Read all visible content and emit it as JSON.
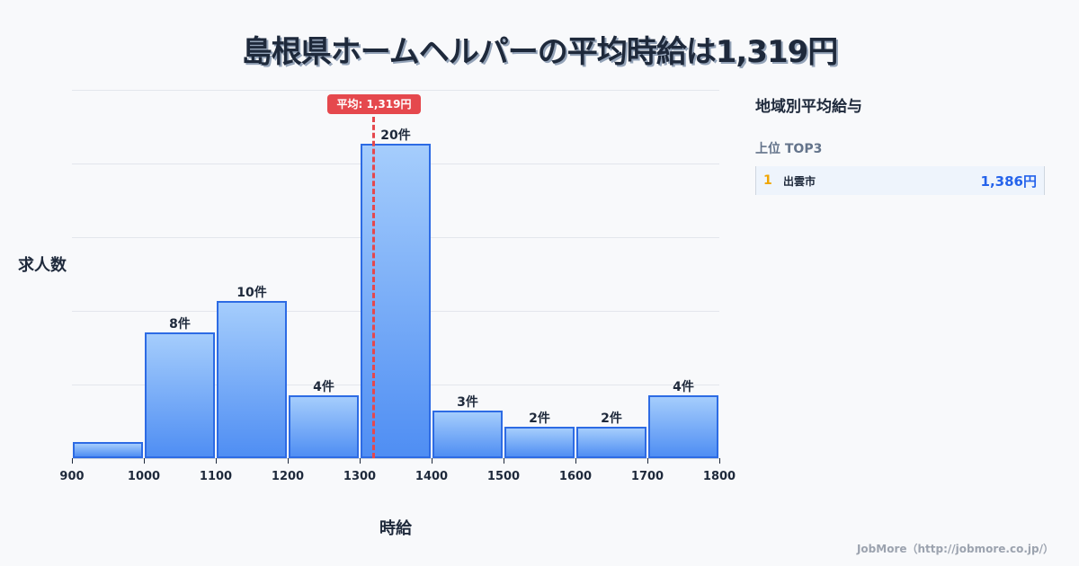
{
  "title": "島根県ホームヘルパーの平均時給は1,319円",
  "average": {
    "label": "平均: 1,319円",
    "value": 1319
  },
  "axes": {
    "ylabel": "求人数",
    "xlabel": "時給"
  },
  "sidebar": {
    "title": "地域別平均給与",
    "subtitle": "上位 TOP3",
    "ranks": [
      {
        "rank": "1",
        "name": "出雲市",
        "value": "1,386円"
      }
    ]
  },
  "footer": "JobMore（http://jobmore.co.jp/）",
  "colors": {
    "bar_border": "#2d6be4",
    "bar_top": "#a5cdfc",
    "bar_bottom": "#4f8ef3",
    "avg_line": "#e5484d",
    "rank_value": "#2563eb",
    "rank_num": "#f0a500"
  },
  "chart_data": {
    "type": "bar",
    "title": "島根県ホームヘルパーの平均時給は1,319円",
    "xlabel": "時給",
    "ylabel": "求人数",
    "bins": [
      900,
      1000,
      1100,
      1200,
      1300,
      1400,
      1500,
      1600,
      1700,
      1800
    ],
    "categories": [
      "900-1000",
      "1000-1100",
      "1100-1200",
      "1200-1300",
      "1300-1400",
      "1400-1500",
      "1500-1600",
      "1600-1700",
      "1700-1800"
    ],
    "values": [
      1,
      8,
      10,
      4,
      20,
      3,
      2,
      2,
      4
    ],
    "bar_labels": [
      "",
      "8件",
      "10件",
      "4件",
      "20件",
      "3件",
      "2件",
      "2件",
      "4件"
    ],
    "tick_labels": [
      "900",
      "1000",
      "1100",
      "1200",
      "1300",
      "1400",
      "1500",
      "1600",
      "1700",
      "1800"
    ],
    "annotations": [
      {
        "type": "vline",
        "x": 1319,
        "label": "平均: 1,319円"
      }
    ],
    "ylim": [
      0,
      23.4
    ],
    "grid": true,
    "legend": "none"
  }
}
